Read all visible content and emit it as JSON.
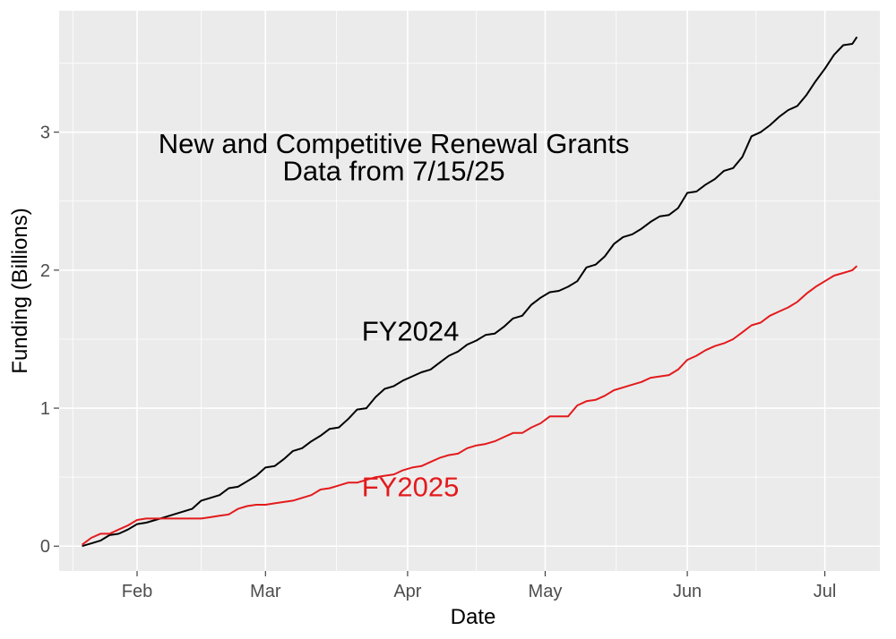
{
  "chart_data": {
    "type": "line",
    "xlabel": "Date",
    "ylabel": "Funding (Billions)",
    "x_axis": {
      "type": "date",
      "range": [
        "2025-01-15",
        "2025-07-13"
      ],
      "ticks": [
        {
          "date": "2025-02-01",
          "label": "Feb"
        },
        {
          "date": "2025-03-01",
          "label": "Mar"
        },
        {
          "date": "2025-04-01",
          "label": "Apr"
        },
        {
          "date": "2025-05-01",
          "label": "May"
        },
        {
          "date": "2025-06-01",
          "label": "Jun"
        },
        {
          "date": "2025-07-01",
          "label": "Jul"
        }
      ]
    },
    "y_axis": {
      "range": [
        -0.18,
        3.88
      ],
      "ticks": [
        0,
        1,
        2,
        3
      ],
      "minor_ticks": [
        0.5,
        1.5,
        2.5,
        3.5
      ]
    },
    "grid": true,
    "legend": "none",
    "annotations": [
      {
        "text": "New and Competitive Renewal Grants",
        "x": "2025-03-29",
        "y": 2.85,
        "color": "#000000"
      },
      {
        "text": "Data from 7/15/25",
        "x": "2025-03-29",
        "y": 2.65,
        "color": "#000000"
      },
      {
        "text": "FY2024",
        "x": "2025-03-22",
        "y": 1.49,
        "color": "#000000"
      },
      {
        "text": "FY2025",
        "x": "2025-03-22",
        "y": 0.36,
        "color": "#e31a1c"
      }
    ],
    "series": [
      {
        "id": "fy2024",
        "color": "#000000",
        "points": [
          [
            "2025-01-20",
            0.0
          ],
          [
            "2025-01-22",
            0.02
          ],
          [
            "2025-01-24",
            0.04
          ],
          [
            "2025-01-26",
            0.08
          ],
          [
            "2025-01-28",
            0.09
          ],
          [
            "2025-01-30",
            0.12
          ],
          [
            "2025-02-01",
            0.16
          ],
          [
            "2025-02-03",
            0.17
          ],
          [
            "2025-02-05",
            0.19
          ],
          [
            "2025-02-07",
            0.21
          ],
          [
            "2025-02-09",
            0.23
          ],
          [
            "2025-02-11",
            0.25
          ],
          [
            "2025-02-13",
            0.27
          ],
          [
            "2025-02-15",
            0.33
          ],
          [
            "2025-02-17",
            0.35
          ],
          [
            "2025-02-19",
            0.37
          ],
          [
            "2025-02-21",
            0.42
          ],
          [
            "2025-02-23",
            0.43
          ],
          [
            "2025-02-25",
            0.47
          ],
          [
            "2025-02-27",
            0.51
          ],
          [
            "2025-03-01",
            0.57
          ],
          [
            "2025-03-03",
            0.58
          ],
          [
            "2025-03-05",
            0.63
          ],
          [
            "2025-03-07",
            0.69
          ],
          [
            "2025-03-09",
            0.71
          ],
          [
            "2025-03-11",
            0.76
          ],
          [
            "2025-03-13",
            0.8
          ],
          [
            "2025-03-15",
            0.85
          ],
          [
            "2025-03-17",
            0.86
          ],
          [
            "2025-03-19",
            0.92
          ],
          [
            "2025-03-21",
            0.99
          ],
          [
            "2025-03-23",
            1.0
          ],
          [
            "2025-03-25",
            1.08
          ],
          [
            "2025-03-27",
            1.14
          ],
          [
            "2025-03-29",
            1.16
          ],
          [
            "2025-03-31",
            1.2
          ],
          [
            "2025-04-02",
            1.23
          ],
          [
            "2025-04-04",
            1.26
          ],
          [
            "2025-04-06",
            1.28
          ],
          [
            "2025-04-08",
            1.33
          ],
          [
            "2025-04-10",
            1.38
          ],
          [
            "2025-04-12",
            1.41
          ],
          [
            "2025-04-14",
            1.46
          ],
          [
            "2025-04-16",
            1.49
          ],
          [
            "2025-04-18",
            1.53
          ],
          [
            "2025-04-20",
            1.54
          ],
          [
            "2025-04-22",
            1.59
          ],
          [
            "2025-04-24",
            1.65
          ],
          [
            "2025-04-26",
            1.67
          ],
          [
            "2025-04-28",
            1.75
          ],
          [
            "2025-04-30",
            1.8
          ],
          [
            "2025-05-02",
            1.84
          ],
          [
            "2025-05-04",
            1.85
          ],
          [
            "2025-05-06",
            1.88
          ],
          [
            "2025-05-08",
            1.92
          ],
          [
            "2025-05-10",
            2.02
          ],
          [
            "2025-05-12",
            2.04
          ],
          [
            "2025-05-14",
            2.1
          ],
          [
            "2025-05-16",
            2.19
          ],
          [
            "2025-05-18",
            2.24
          ],
          [
            "2025-05-20",
            2.26
          ],
          [
            "2025-05-22",
            2.3
          ],
          [
            "2025-05-24",
            2.35
          ],
          [
            "2025-05-26",
            2.39
          ],
          [
            "2025-05-28",
            2.4
          ],
          [
            "2025-05-30",
            2.45
          ],
          [
            "2025-06-01",
            2.56
          ],
          [
            "2025-06-03",
            2.57
          ],
          [
            "2025-06-05",
            2.62
          ],
          [
            "2025-06-07",
            2.66
          ],
          [
            "2025-06-09",
            2.72
          ],
          [
            "2025-06-11",
            2.74
          ],
          [
            "2025-06-13",
            2.82
          ],
          [
            "2025-06-15",
            2.97
          ],
          [
            "2025-06-17",
            3.0
          ],
          [
            "2025-06-19",
            3.05
          ],
          [
            "2025-06-21",
            3.11
          ],
          [
            "2025-06-23",
            3.16
          ],
          [
            "2025-06-25",
            3.19
          ],
          [
            "2025-06-27",
            3.27
          ],
          [
            "2025-06-29",
            3.37
          ],
          [
            "2025-07-01",
            3.46
          ],
          [
            "2025-07-03",
            3.56
          ],
          [
            "2025-07-05",
            3.63
          ],
          [
            "2025-07-07",
            3.64
          ],
          [
            "2025-07-08",
            3.69
          ]
        ]
      },
      {
        "id": "fy2025",
        "color": "#e31a1c",
        "points": [
          [
            "2025-01-20",
            0.01
          ],
          [
            "2025-01-22",
            0.06
          ],
          [
            "2025-01-24",
            0.09
          ],
          [
            "2025-01-26",
            0.09
          ],
          [
            "2025-01-28",
            0.12
          ],
          [
            "2025-01-30",
            0.15
          ],
          [
            "2025-02-01",
            0.19
          ],
          [
            "2025-02-03",
            0.2
          ],
          [
            "2025-02-05",
            0.2
          ],
          [
            "2025-02-07",
            0.2
          ],
          [
            "2025-02-09",
            0.2
          ],
          [
            "2025-02-11",
            0.2
          ],
          [
            "2025-02-13",
            0.2
          ],
          [
            "2025-02-15",
            0.2
          ],
          [
            "2025-02-17",
            0.21
          ],
          [
            "2025-02-19",
            0.22
          ],
          [
            "2025-02-21",
            0.23
          ],
          [
            "2025-02-23",
            0.27
          ],
          [
            "2025-02-25",
            0.29
          ],
          [
            "2025-02-27",
            0.3
          ],
          [
            "2025-03-01",
            0.3
          ],
          [
            "2025-03-03",
            0.31
          ],
          [
            "2025-03-05",
            0.32
          ],
          [
            "2025-03-07",
            0.33
          ],
          [
            "2025-03-09",
            0.35
          ],
          [
            "2025-03-11",
            0.37
          ],
          [
            "2025-03-13",
            0.41
          ],
          [
            "2025-03-15",
            0.42
          ],
          [
            "2025-03-17",
            0.44
          ],
          [
            "2025-03-19",
            0.46
          ],
          [
            "2025-03-21",
            0.46
          ],
          [
            "2025-03-23",
            0.48
          ],
          [
            "2025-03-25",
            0.5
          ],
          [
            "2025-03-27",
            0.51
          ],
          [
            "2025-03-29",
            0.52
          ],
          [
            "2025-03-31",
            0.55
          ],
          [
            "2025-04-02",
            0.57
          ],
          [
            "2025-04-04",
            0.58
          ],
          [
            "2025-04-06",
            0.61
          ],
          [
            "2025-04-08",
            0.64
          ],
          [
            "2025-04-10",
            0.66
          ],
          [
            "2025-04-12",
            0.67
          ],
          [
            "2025-04-14",
            0.71
          ],
          [
            "2025-04-16",
            0.73
          ],
          [
            "2025-04-18",
            0.74
          ],
          [
            "2025-04-20",
            0.76
          ],
          [
            "2025-04-22",
            0.79
          ],
          [
            "2025-04-24",
            0.82
          ],
          [
            "2025-04-26",
            0.82
          ],
          [
            "2025-04-28",
            0.86
          ],
          [
            "2025-04-30",
            0.89
          ],
          [
            "2025-05-02",
            0.94
          ],
          [
            "2025-05-04",
            0.94
          ],
          [
            "2025-05-06",
            0.94
          ],
          [
            "2025-05-08",
            1.02
          ],
          [
            "2025-05-10",
            1.05
          ],
          [
            "2025-05-12",
            1.06
          ],
          [
            "2025-05-14",
            1.09
          ],
          [
            "2025-05-16",
            1.13
          ],
          [
            "2025-05-18",
            1.15
          ],
          [
            "2025-05-20",
            1.17
          ],
          [
            "2025-05-22",
            1.19
          ],
          [
            "2025-05-24",
            1.22
          ],
          [
            "2025-05-26",
            1.23
          ],
          [
            "2025-05-28",
            1.24
          ],
          [
            "2025-05-30",
            1.28
          ],
          [
            "2025-06-01",
            1.35
          ],
          [
            "2025-06-03",
            1.38
          ],
          [
            "2025-06-05",
            1.42
          ],
          [
            "2025-06-07",
            1.45
          ],
          [
            "2025-06-09",
            1.47
          ],
          [
            "2025-06-11",
            1.5
          ],
          [
            "2025-06-13",
            1.55
          ],
          [
            "2025-06-15",
            1.6
          ],
          [
            "2025-06-17",
            1.62
          ],
          [
            "2025-06-19",
            1.67
          ],
          [
            "2025-06-21",
            1.7
          ],
          [
            "2025-06-23",
            1.73
          ],
          [
            "2025-06-25",
            1.77
          ],
          [
            "2025-06-27",
            1.83
          ],
          [
            "2025-06-29",
            1.88
          ],
          [
            "2025-07-01",
            1.92
          ],
          [
            "2025-07-03",
            1.96
          ],
          [
            "2025-07-05",
            1.98
          ],
          [
            "2025-07-07",
            2.0
          ],
          [
            "2025-07-08",
            2.03
          ]
        ]
      }
    ]
  }
}
